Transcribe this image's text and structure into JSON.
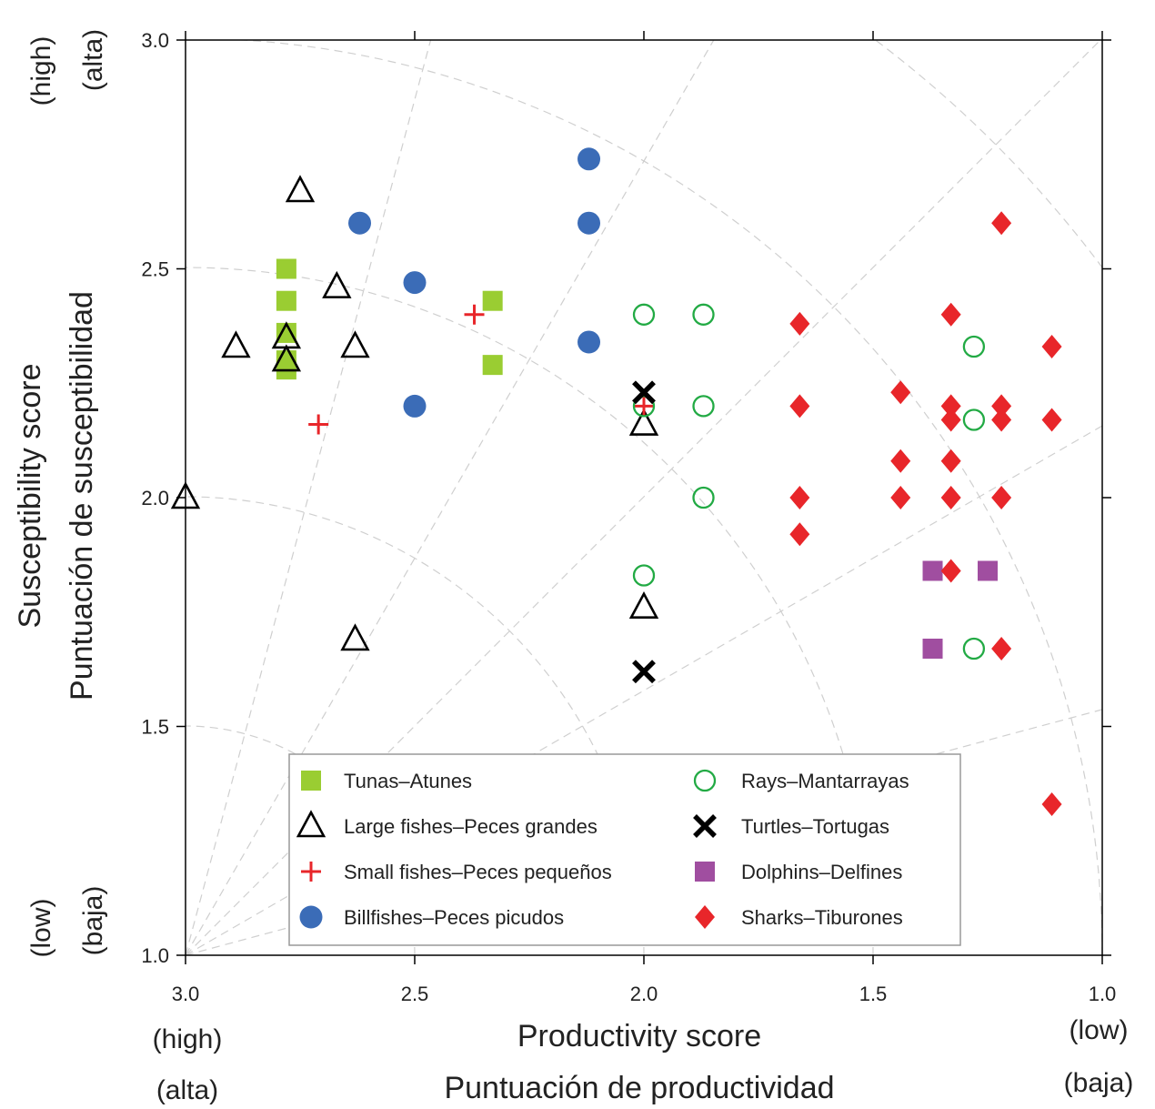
{
  "chart_data": {
    "type": "scatter",
    "xlabel": "Productivity score",
    "xlabel_es": "Puntuación de productividad",
    "ylabel": "Susceptibility score",
    "ylabel_es": "Puntuación de susceptibilidad",
    "xlim": [
      3.0,
      1.0
    ],
    "ylim": [
      1.0,
      3.0
    ],
    "x_reversed": true,
    "x_ticks": [
      "3.0",
      "2.5",
      "2.0",
      "1.5",
      "1.0"
    ],
    "y_ticks": [
      "1.0",
      "1.5",
      "2.0",
      "2.5",
      "3.0"
    ],
    "x_end_labels": {
      "high_en": "(high)",
      "high_es": "(alta)",
      "low_en": "(low)",
      "low_es": "(baja)"
    },
    "y_end_labels": {
      "high_en": "(high)",
      "high_es": "(alta)",
      "low_en": "(low)",
      "low_es": "(baja)"
    },
    "grid": "dashed radial arcs and rays centered at (3.0, 1.0)",
    "legend_position": "bottom-left",
    "series": [
      {
        "name": "Tunas–Atunes",
        "marker": "square",
        "color": "#9acd32",
        "points": [
          [
            2.78,
            2.5
          ],
          [
            2.78,
            2.43
          ],
          [
            2.78,
            2.36
          ],
          [
            2.78,
            2.3
          ],
          [
            2.78,
            2.28
          ],
          [
            2.33,
            2.43
          ],
          [
            2.33,
            2.29
          ]
        ]
      },
      {
        "name": "Large fishes–Peces grandes",
        "marker": "triangle-open",
        "color": "#000000",
        "points": [
          [
            2.75,
            2.67
          ],
          [
            2.67,
            2.46
          ],
          [
            2.89,
            2.33
          ],
          [
            2.78,
            2.35
          ],
          [
            2.78,
            2.3
          ],
          [
            2.63,
            2.33
          ],
          [
            3.0,
            2.0
          ],
          [
            2.63,
            1.69
          ],
          [
            2.0,
            2.16
          ],
          [
            2.0,
            1.76
          ]
        ]
      },
      {
        "name": "Small fishes–Peces pequeños",
        "marker": "plus",
        "color": "#e8262a",
        "points": [
          [
            2.37,
            2.4
          ],
          [
            2.71,
            2.16
          ],
          [
            2.0,
            2.2
          ]
        ]
      },
      {
        "name": "Billfishes–Peces picudos",
        "marker": "circle",
        "color": "#3b6cb7",
        "points": [
          [
            2.12,
            2.74
          ],
          [
            2.12,
            2.6
          ],
          [
            2.62,
            2.6
          ],
          [
            2.5,
            2.47
          ],
          [
            2.12,
            2.34
          ],
          [
            2.5,
            2.2
          ]
        ]
      },
      {
        "name": "Rays–Mantarrayas",
        "marker": "circle-open",
        "color": "#22aa44",
        "points": [
          [
            2.0,
            2.4
          ],
          [
            1.87,
            2.4
          ],
          [
            1.28,
            2.33
          ],
          [
            2.0,
            2.2
          ],
          [
            1.87,
            2.2
          ],
          [
            1.28,
            2.17
          ],
          [
            1.87,
            2.0
          ],
          [
            2.0,
            1.83
          ],
          [
            1.28,
            1.67
          ]
        ]
      },
      {
        "name": "Turtles–Tortugas",
        "marker": "x",
        "color": "#000000",
        "points": [
          [
            2.0,
            2.23
          ],
          [
            2.0,
            1.62
          ]
        ]
      },
      {
        "name": "Dolphins–Delfines",
        "marker": "square",
        "color": "#a04ea0",
        "points": [
          [
            1.37,
            1.84
          ],
          [
            1.25,
            1.84
          ],
          [
            1.37,
            1.67
          ]
        ]
      },
      {
        "name": "Sharks–Tiburones",
        "marker": "diamond",
        "color": "#e8262a",
        "points": [
          [
            1.22,
            2.6
          ],
          [
            1.33,
            2.4
          ],
          [
            1.66,
            2.38
          ],
          [
            1.11,
            2.33
          ],
          [
            1.44,
            2.23
          ],
          [
            1.33,
            2.2
          ],
          [
            1.22,
            2.2
          ],
          [
            1.66,
            2.2
          ],
          [
            1.33,
            2.17
          ],
          [
            1.22,
            2.17
          ],
          [
            1.11,
            2.17
          ],
          [
            1.44,
            2.08
          ],
          [
            1.33,
            2.08
          ],
          [
            1.66,
            2.0
          ],
          [
            1.44,
            2.0
          ],
          [
            1.33,
            2.0
          ],
          [
            1.22,
            2.0
          ],
          [
            1.66,
            1.92
          ],
          [
            1.33,
            1.84
          ],
          [
            1.22,
            1.67
          ],
          [
            1.11,
            1.33
          ]
        ]
      }
    ]
  }
}
